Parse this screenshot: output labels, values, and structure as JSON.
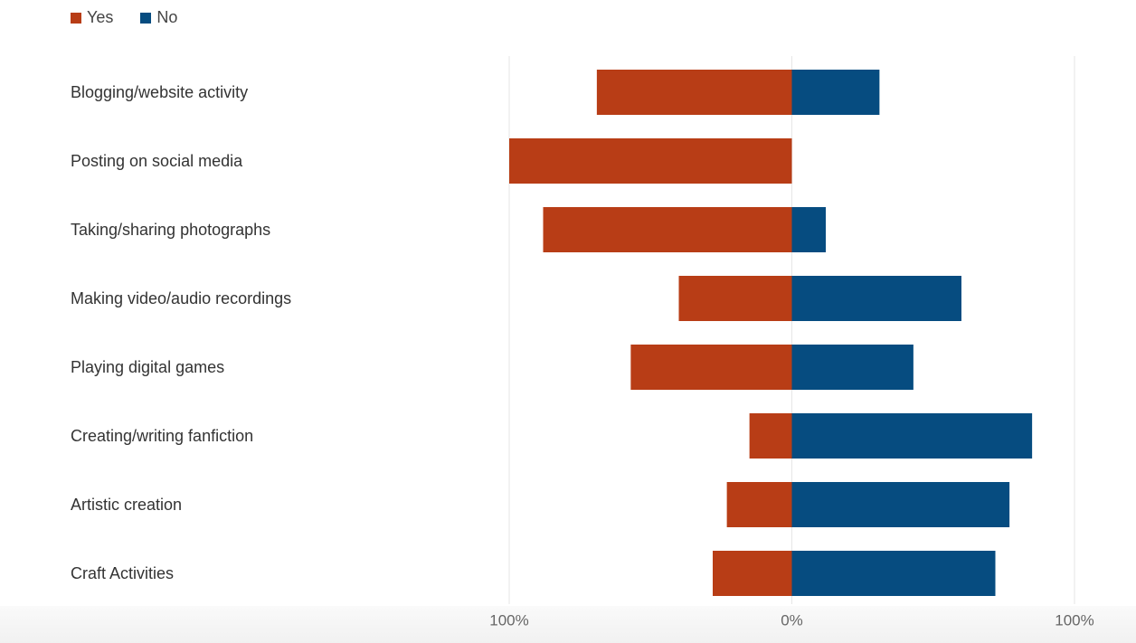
{
  "chart_data": {
    "type": "bar",
    "orientation": "horizontal-diverging",
    "title": "",
    "xlabel": "",
    "ylabel": "",
    "categories": [
      "Blogging/website activity",
      "Posting on social media",
      "Taking/sharing photographs",
      "Making video/audio recordings",
      "Playing digital games",
      "Creating/writing fanfiction",
      "Artistic creation",
      "Craft Activities"
    ],
    "series": [
      {
        "name": "Yes",
        "color": "#b83d16",
        "direction": "left",
        "values": [
          69,
          100,
          88,
          40,
          57,
          15,
          23,
          28
        ]
      },
      {
        "name": "No",
        "color": "#064c80",
        "direction": "right",
        "values": [
          31,
          0,
          12,
          60,
          43,
          85,
          77,
          72
        ]
      }
    ],
    "xlim": [
      -100,
      100
    ],
    "ticks": [
      {
        "value": -100,
        "label": "100%"
      },
      {
        "value": 0,
        "label": "0%"
      },
      {
        "value": 100,
        "label": "100%"
      }
    ],
    "grid": true,
    "legend_position": "top-left"
  }
}
